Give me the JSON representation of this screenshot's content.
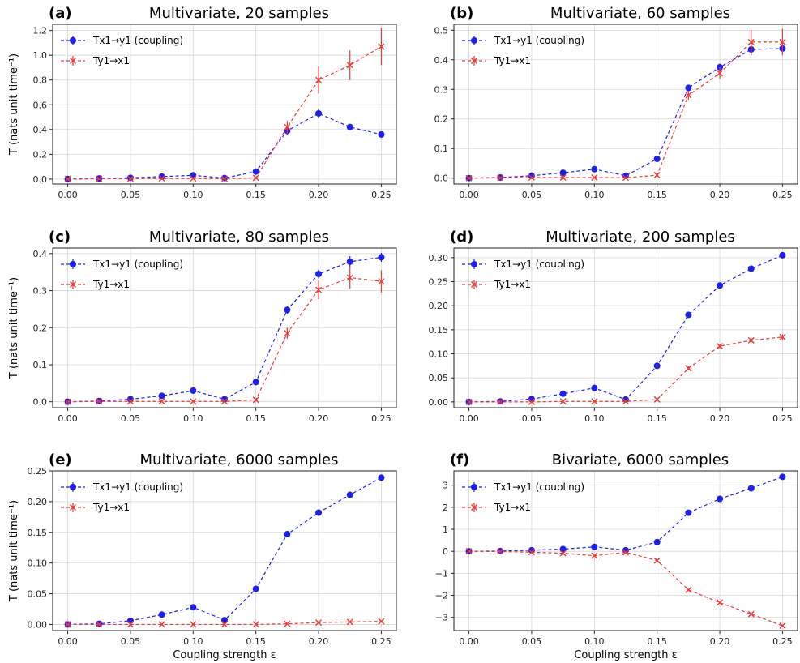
{
  "figure": {
    "xlabel": "Coupling strength ε",
    "ylabel": "T (nats unit time⁻¹)"
  },
  "legend": {
    "forward_label": "Tx1→y1 (coupling)",
    "reverse_label": "Ty1→x1"
  },
  "colors": {
    "forward": "#1f1fe6",
    "reverse": "#e83a3a"
  },
  "chart_data": [
    {
      "type": "line",
      "letter": "(a)",
      "title": "Multivariate, 20 samples",
      "x": [
        0.0,
        0.025,
        0.05,
        0.075,
        0.1,
        0.125,
        0.15,
        0.175,
        0.2,
        0.225,
        0.25
      ],
      "xticks": [
        "0.00",
        "0.05",
        "0.10",
        "0.15",
        "0.20",
        "0.25"
      ],
      "xlim": [
        -0.012,
        0.262
      ],
      "ylim": [
        -0.04,
        1.25
      ],
      "yticks": [
        "0.0",
        "0.2",
        "0.4",
        "0.6",
        "0.8",
        "1.0",
        "1.2"
      ],
      "ytick_values": [
        0.0,
        0.2,
        0.4,
        0.6,
        0.8,
        1.0,
        1.2
      ],
      "show_ylabel": true,
      "show_xlabel": false,
      "series": [
        {
          "name": "Tx1→y1 (coupling)",
          "marker": "dot",
          "values": [
            0.0,
            0.005,
            0.01,
            0.02,
            0.03,
            0.008,
            0.06,
            0.39,
            0.53,
            0.42,
            0.36
          ],
          "err": [
            0.005,
            0.005,
            0.008,
            0.01,
            0.012,
            0.008,
            0.015,
            0.03,
            0.04,
            0.025,
            0.015
          ]
        },
        {
          "name": "Ty1→x1",
          "marker": "x",
          "values": [
            0.0,
            0.003,
            0.003,
            0.005,
            0.005,
            0.003,
            0.01,
            0.42,
            0.8,
            0.92,
            1.07
          ],
          "err": [
            0.005,
            0.005,
            0.005,
            0.005,
            0.005,
            0.005,
            0.01,
            0.05,
            0.11,
            0.12,
            0.15
          ]
        }
      ]
    },
    {
      "type": "line",
      "letter": "(b)",
      "title": "Multivariate, 60 samples",
      "x": [
        0.0,
        0.025,
        0.05,
        0.075,
        0.1,
        0.125,
        0.15,
        0.175,
        0.2,
        0.225,
        0.25
      ],
      "xticks": [
        "0.00",
        "0.05",
        "0.10",
        "0.15",
        "0.20",
        "0.25"
      ],
      "xlim": [
        -0.012,
        0.262
      ],
      "ylim": [
        -0.02,
        0.52
      ],
      "yticks": [
        "0.0",
        "0.1",
        "0.2",
        "0.3",
        "0.4",
        "0.5"
      ],
      "ytick_values": [
        0.0,
        0.1,
        0.2,
        0.3,
        0.4,
        0.5
      ],
      "show_ylabel": false,
      "show_xlabel": false,
      "series": [
        {
          "name": "Tx1→y1 (coupling)",
          "marker": "dot",
          "values": [
            0.0,
            0.002,
            0.008,
            0.018,
            0.03,
            0.008,
            0.065,
            0.305,
            0.375,
            0.435,
            0.438
          ],
          "err": [
            0.003,
            0.003,
            0.004,
            0.005,
            0.006,
            0.004,
            0.008,
            0.01,
            0.012,
            0.02,
            0.02
          ]
        },
        {
          "name": "Ty1→x1",
          "marker": "x",
          "values": [
            0.0,
            0.001,
            0.002,
            0.002,
            0.002,
            0.001,
            0.01,
            0.28,
            0.355,
            0.46,
            0.46
          ],
          "err": [
            0.003,
            0.003,
            0.003,
            0.003,
            0.003,
            0.003,
            0.006,
            0.015,
            0.02,
            0.04,
            0.045
          ]
        }
      ]
    },
    {
      "type": "line",
      "letter": "(c)",
      "title": "Multivariate, 80 samples",
      "x": [
        0.0,
        0.025,
        0.05,
        0.075,
        0.1,
        0.125,
        0.15,
        0.175,
        0.2,
        0.225,
        0.25
      ],
      "xticks": [
        "0.00",
        "0.05",
        "0.10",
        "0.15",
        "0.20",
        "0.25"
      ],
      "xlim": [
        -0.012,
        0.262
      ],
      "ylim": [
        -0.016,
        0.415
      ],
      "yticks": [
        "0.0",
        "0.1",
        "0.2",
        "0.3",
        "0.4"
      ],
      "ytick_values": [
        0.0,
        0.1,
        0.2,
        0.3,
        0.4
      ],
      "show_ylabel": true,
      "show_xlabel": false,
      "series": [
        {
          "name": "Tx1→y1 (coupling)",
          "marker": "dot",
          "values": [
            0.0,
            0.002,
            0.007,
            0.016,
            0.03,
            0.007,
            0.053,
            0.248,
            0.345,
            0.378,
            0.39
          ],
          "err": [
            0.002,
            0.002,
            0.003,
            0.004,
            0.005,
            0.003,
            0.006,
            0.01,
            0.012,
            0.015,
            0.012
          ]
        },
        {
          "name": "Ty1→x1",
          "marker": "x",
          "values": [
            0.0,
            0.001,
            0.001,
            0.001,
            0.001,
            0.001,
            0.005,
            0.185,
            0.302,
            0.335,
            0.325
          ],
          "err": [
            0.002,
            0.002,
            0.002,
            0.002,
            0.002,
            0.002,
            0.004,
            0.015,
            0.025,
            0.03,
            0.03
          ]
        }
      ]
    },
    {
      "type": "line",
      "letter": "(d)",
      "title": "Multivariate, 200 samples",
      "x": [
        0.0,
        0.025,
        0.05,
        0.075,
        0.1,
        0.125,
        0.15,
        0.175,
        0.2,
        0.225,
        0.25
      ],
      "xticks": [
        "0.00",
        "0.05",
        "0.10",
        "0.15",
        "0.20",
        "0.25"
      ],
      "xlim": [
        -0.012,
        0.262
      ],
      "ylim": [
        -0.012,
        0.32
      ],
      "yticks": [
        "0.00",
        "0.05",
        "0.10",
        "0.15",
        "0.20",
        "0.25",
        "0.30"
      ],
      "ytick_values": [
        0.0,
        0.05,
        0.1,
        0.15,
        0.2,
        0.25,
        0.3
      ],
      "show_ylabel": false,
      "show_xlabel": false,
      "series": [
        {
          "name": "Tx1→y1 (coupling)",
          "marker": "dot",
          "values": [
            0.0,
            0.001,
            0.006,
            0.017,
            0.029,
            0.005,
            0.075,
            0.181,
            0.242,
            0.277,
            0.305
          ],
          "err": [
            0.001,
            0.001,
            0.002,
            0.002,
            0.003,
            0.002,
            0.003,
            0.004,
            0.004,
            0.004,
            0.004
          ]
        },
        {
          "name": "Ty1→x1",
          "marker": "x",
          "values": [
            0.0,
            0.0,
            0.0,
            0.001,
            0.001,
            0.001,
            0.005,
            0.07,
            0.116,
            0.128,
            0.135
          ],
          "err": [
            0.001,
            0.001,
            0.001,
            0.001,
            0.001,
            0.001,
            0.002,
            0.004,
            0.005,
            0.005,
            0.006
          ]
        }
      ]
    },
    {
      "type": "line",
      "letter": "(e)",
      "title": "Multivariate, 6000 samples",
      "x": [
        0.0,
        0.025,
        0.05,
        0.075,
        0.1,
        0.125,
        0.15,
        0.175,
        0.2,
        0.225,
        0.25
      ],
      "xticks": [
        "0.00",
        "0.05",
        "0.10",
        "0.15",
        "0.20",
        "0.25"
      ],
      "xlim": [
        -0.012,
        0.262
      ],
      "ylim": [
        -0.01,
        0.25
      ],
      "yticks": [
        "0.00",
        "0.05",
        "0.10",
        "0.15",
        "0.20",
        "0.25"
      ],
      "ytick_values": [
        0.0,
        0.05,
        0.1,
        0.15,
        0.2,
        0.25
      ],
      "show_ylabel": true,
      "show_xlabel": true,
      "series": [
        {
          "name": "Tx1→y1 (coupling)",
          "marker": "dot",
          "values": [
            0.0,
            0.001,
            0.006,
            0.016,
            0.028,
            0.007,
            0.058,
            0.147,
            0.182,
            0.211,
            0.239
          ],
          "err": [
            0.0005,
            0.0005,
            0.001,
            0.001,
            0.001,
            0.001,
            0.001,
            0.001,
            0.001,
            0.001,
            0.001
          ]
        },
        {
          "name": "Ty1→x1",
          "marker": "x",
          "values": [
            0.0,
            0.0,
            0.0,
            0.0,
            0.0,
            0.0,
            0.0,
            0.001,
            0.003,
            0.004,
            0.005
          ],
          "err": [
            0.0005,
            0.0005,
            0.0005,
            0.0005,
            0.0005,
            0.0005,
            0.0005,
            0.0005,
            0.0005,
            0.0005,
            0.0005
          ]
        }
      ]
    },
    {
      "type": "line",
      "letter": "(f)",
      "title": "Bivariate, 6000 samples",
      "x": [
        0.0,
        0.025,
        0.05,
        0.075,
        0.1,
        0.125,
        0.15,
        0.175,
        0.2,
        0.225,
        0.25
      ],
      "xticks": [
        "0.00",
        "0.05",
        "0.10",
        "0.15",
        "0.20",
        "0.25"
      ],
      "xlim": [
        -0.012,
        0.262
      ],
      "ylim": [
        -3.6,
        3.65
      ],
      "yticks": [
        "−3",
        "−2",
        "−1",
        "0",
        "1",
        "2",
        "3"
      ],
      "ytick_values": [
        -3,
        -2,
        -1,
        0,
        1,
        2,
        3
      ],
      "show_ylabel": false,
      "show_xlabel": true,
      "series": [
        {
          "name": "Tx1→y1 (coupling)",
          "marker": "dot",
          "values": [
            0.0,
            0.01,
            0.05,
            0.1,
            0.2,
            0.05,
            0.42,
            1.75,
            2.38,
            2.86,
            3.38
          ],
          "err": [
            0.01,
            0.01,
            0.01,
            0.01,
            0.01,
            0.01,
            0.01,
            0.02,
            0.02,
            0.02,
            0.02
          ]
        },
        {
          "name": "Ty1→x1",
          "marker": "x",
          "values": [
            0.0,
            -0.01,
            -0.04,
            -0.09,
            -0.2,
            -0.05,
            -0.42,
            -1.75,
            -2.33,
            -2.85,
            -3.38
          ],
          "err": [
            0.01,
            0.01,
            0.01,
            0.01,
            0.01,
            0.01,
            0.01,
            0.02,
            0.02,
            0.02,
            0.02
          ]
        }
      ]
    }
  ]
}
